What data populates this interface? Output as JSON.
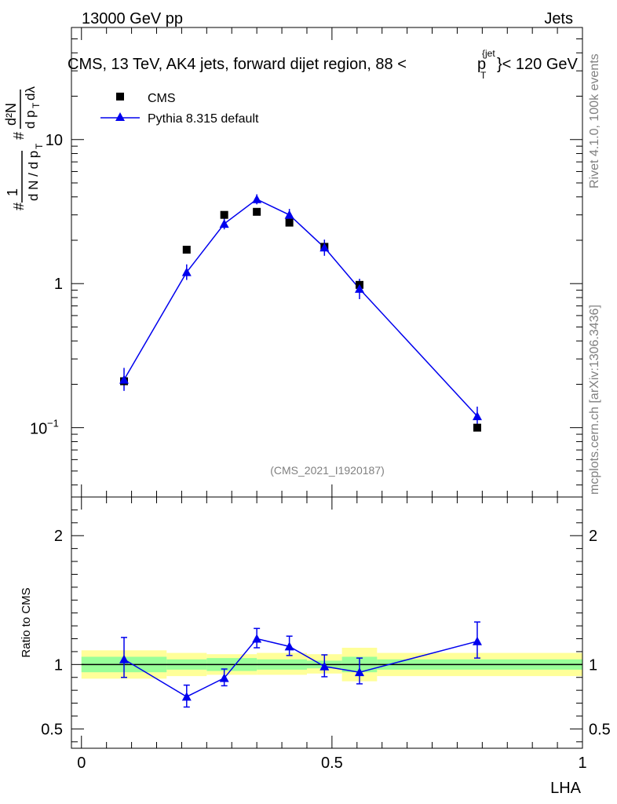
{
  "header": {
    "energy_label": "13000 GeV pp",
    "process_label": "Jets"
  },
  "side": {
    "rivet_label": "Rivet 4.1.0,  100k events",
    "site_label": "mcplots.cern.ch [arXiv:1306.3436]"
  },
  "colors": {
    "mc": "#0000ee",
    "data": "#000000",
    "band_inner": "#99ff99",
    "band_outer": "#ffff99"
  },
  "chart_data": [
    {
      "type": "scatter",
      "title": "CMS, 13 TeV, AK4 jets, forward dijet region, 88 < p_T^{jet} < 120 GeV",
      "title_pre": "CMS, 13 TeV, AK4 jets, forward dijet region, 88 <",
      "title_p": "p",
      "title_sub": "T",
      "title_sup": "{jet",
      "title_post": "}< 120 GeV",
      "ylabel": "1/(dN/dp_T) d²N/(dp_T dλ)",
      "yscale": "log",
      "ylim": [
        0.033,
        60
      ],
      "xlim": [
        -0.02,
        1.0
      ],
      "ytick_labels": [
        "1",
        "10"
      ],
      "ytick_label_low_base": "10",
      "ytick_label_low_exp": "−1",
      "watermark": "(CMS_2021_I1920187)",
      "legend": [
        "CMS",
        "Pythia 8.315 default"
      ],
      "series": [
        {
          "name": "CMS",
          "marker": "square",
          "x": [
            0.085,
            0.21,
            0.285,
            0.35,
            0.415,
            0.485,
            0.555,
            0.79
          ],
          "y": [
            0.21,
            1.72,
            3.0,
            3.15,
            2.65,
            1.8,
            0.98,
            0.1
          ]
        },
        {
          "name": "Pythia 8.315 default",
          "marker": "triangle",
          "x": [
            0.085,
            0.21,
            0.285,
            0.35,
            0.415,
            0.485,
            0.555,
            0.79
          ],
          "y": [
            0.215,
            1.2,
            2.6,
            3.85,
            3.0,
            1.78,
            0.92,
            0.12
          ],
          "yerr_low": [
            0.035,
            0.14,
            0.22,
            0.3,
            0.28,
            0.22,
            0.14,
            0.018
          ],
          "yerr_high": [
            0.045,
            0.16,
            0.24,
            0.32,
            0.3,
            0.24,
            0.16,
            0.02
          ]
        }
      ]
    },
    {
      "type": "line",
      "ylabel": "Ratio to CMS",
      "xlabel": "LHA",
      "ylim": [
        0.35,
        2.3
      ],
      "xlim": [
        -0.02,
        1.0
      ],
      "ytick_labels": [
        "0.5",
        "1",
        "2"
      ],
      "xtick_labels": [
        "0",
        "0.5",
        "1"
      ],
      "bands": {
        "edges": [
          0.0,
          0.17,
          0.25,
          0.35,
          0.45,
          0.52,
          0.59,
          1.0
        ],
        "inner_low": [
          0.94,
          0.96,
          0.95,
          0.96,
          0.97,
          0.94,
          0.96
        ],
        "inner_high": [
          1.06,
          1.04,
          1.05,
          1.04,
          1.03,
          1.06,
          1.04
        ],
        "outer_low": [
          0.89,
          0.91,
          0.92,
          0.92,
          0.93,
          0.87,
          0.91
        ],
        "outer_high": [
          1.11,
          1.09,
          1.08,
          1.09,
          1.08,
          1.13,
          1.09
        ]
      },
      "series": [
        {
          "name": "Pythia 8.315 default",
          "x": [
            0.085,
            0.21,
            0.285,
            0.35,
            0.415,
            0.485,
            0.555,
            0.79
          ],
          "y": [
            1.04,
            0.75,
            0.895,
            1.2,
            1.14,
            0.985,
            0.94,
            1.18
          ],
          "yerr_low": [
            0.14,
            0.08,
            0.06,
            0.07,
            0.07,
            0.08,
            0.09,
            0.13
          ],
          "yerr_high": [
            0.17,
            0.09,
            0.07,
            0.08,
            0.08,
            0.09,
            0.11,
            0.15
          ]
        }
      ]
    }
  ]
}
